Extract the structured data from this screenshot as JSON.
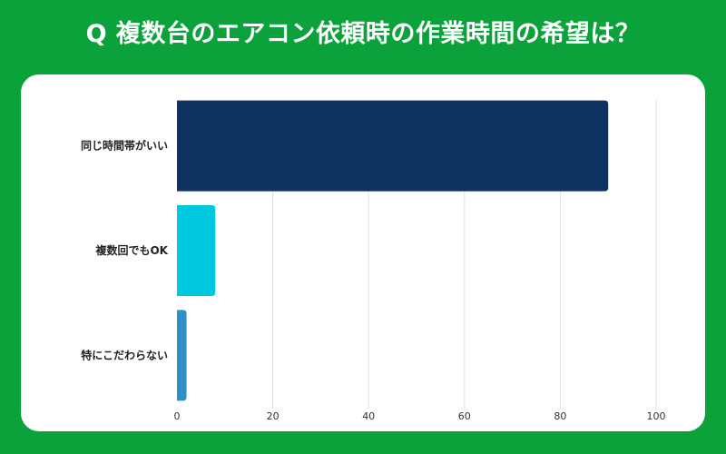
{
  "title": "Q 複数台のエアコン依頼時の作業時間の希望は？",
  "colors": {
    "background": "#0ba23c",
    "card": "#ffffff",
    "grid": "#e0e0e0"
  },
  "chart_data": {
    "type": "bar",
    "orientation": "horizontal",
    "categories": [
      "同じ時間帯がいい",
      "複数回でもOK",
      "特にこだわらない"
    ],
    "values": [
      90,
      8,
      2
    ],
    "bar_colors": [
      "#0e3262",
      "#00c8e0",
      "#2f8fc6"
    ],
    "xlim": [
      0,
      100
    ],
    "xticks": [
      0,
      20,
      40,
      60,
      80,
      100
    ],
    "grid": true,
    "legend": "none"
  }
}
